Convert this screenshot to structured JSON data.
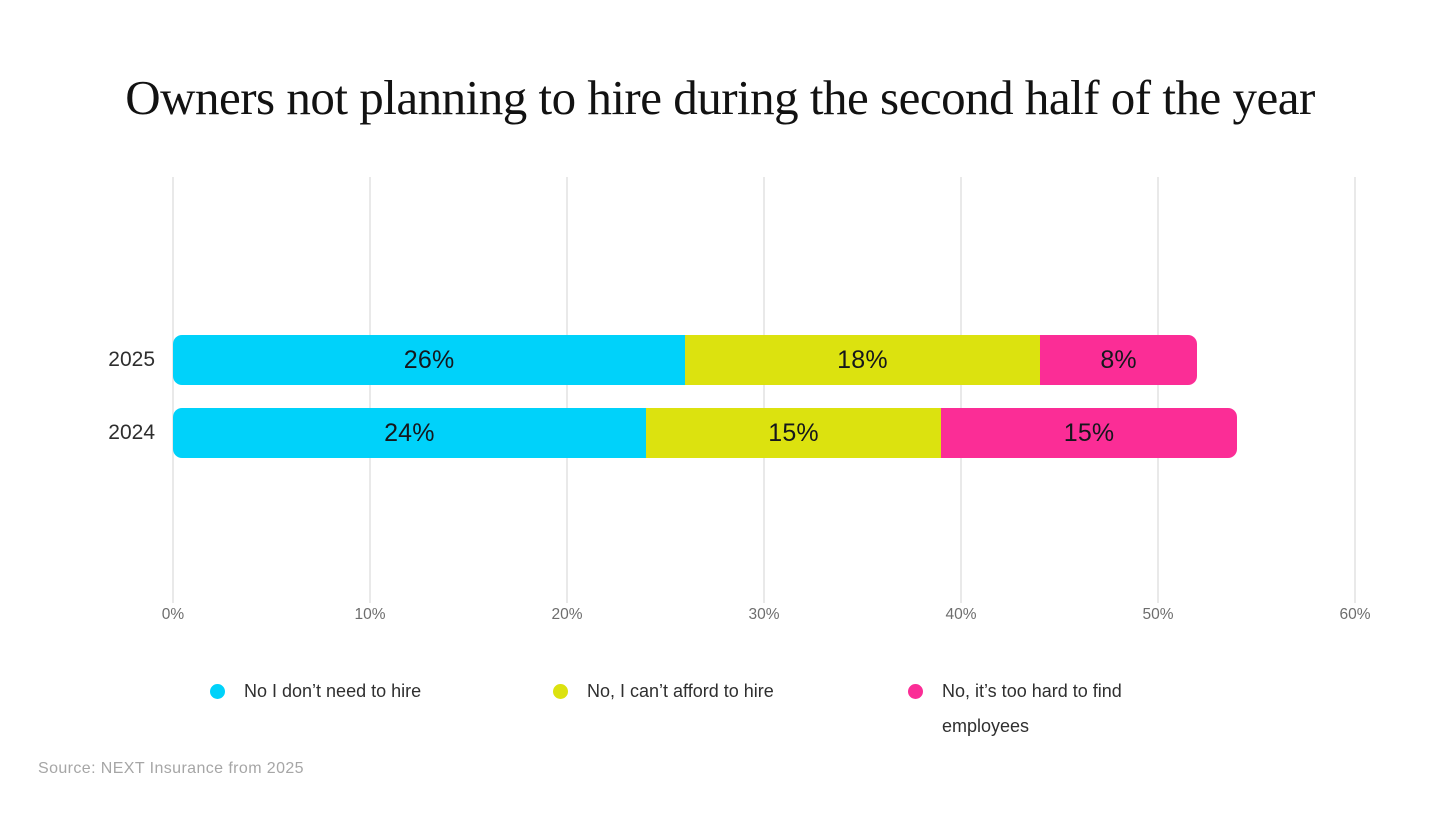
{
  "title": "Owners not planning to hire during the second half of the year",
  "source": "Source: NEXT Insurance from 2025",
  "chart_data": {
    "type": "bar",
    "orientation": "horizontal",
    "stacked": true,
    "title": "Owners not planning to hire during the second half of the year",
    "categories": [
      "2025",
      "2024"
    ],
    "series": [
      {
        "name": "No I don’t need to hire",
        "color": "#00D2FA",
        "values": [
          26,
          24
        ]
      },
      {
        "name": "No, I can’t afford to hire",
        "color": "#DCE20F",
        "values": [
          18,
          15
        ]
      },
      {
        "name": "No, it’s too hard to find employees",
        "color": "#FB2D96",
        "values": [
          8,
          15
        ]
      }
    ],
    "value_suffix": "%",
    "xlim": [
      0,
      60
    ],
    "xtick_values": [
      0,
      10,
      20,
      30,
      40,
      50,
      60
    ],
    "xticks": [
      "0%",
      "10%",
      "20%",
      "30%",
      "40%",
      "50%",
      "60%"
    ],
    "grid": "vertical",
    "legend_position": "bottom",
    "colors": {
      "grid": "#e9e9e9",
      "bar_label_text": "#15171c",
      "tick_text": "#6d6d6d",
      "source_text": "#a6a6a6"
    }
  }
}
